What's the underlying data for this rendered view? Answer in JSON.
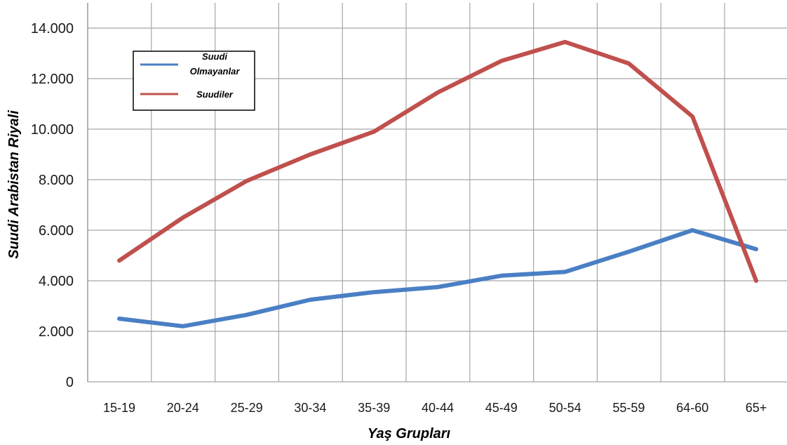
{
  "chart_data": {
    "type": "line",
    "categories": [
      "15-19",
      "20-24",
      "25-29",
      "30-34",
      "35-39",
      "40-44",
      "45-49",
      "50-54",
      "55-59",
      "64-60",
      "65+"
    ],
    "series": [
      {
        "name": "Suudi Olmayanlar",
        "color": "#4a7fc4",
        "values": [
          2500,
          2200,
          2650,
          3250,
          3550,
          3750,
          4200,
          4350,
          5150,
          6000,
          5250
        ]
      },
      {
        "name": "Suudiler",
        "color": "#c0504d",
        "values": [
          4800,
          6500,
          7950,
          9000,
          9900,
          11450,
          12700,
          13450,
          12600,
          10500,
          4000
        ]
      }
    ],
    "y_ticks": [
      {
        "value": 0,
        "label": "0"
      },
      {
        "value": 2000,
        "label": "2.000"
      },
      {
        "value": 4000,
        "label": "4.000"
      },
      {
        "value": 6000,
        "label": "6.000"
      },
      {
        "value": 8000,
        "label": "8.000"
      },
      {
        "value": 10000,
        "label": "10.000"
      },
      {
        "value": 12000,
        "label": "12.000"
      },
      {
        "value": 14000,
        "label": "14.000"
      }
    ],
    "ylim": [
      0,
      14000
    ],
    "xlabel": "Yaş Grupları",
    "ylabel": "Suudi Arabistan Riyali",
    "grid": true,
    "legend_position": "top-left",
    "legend_labels": [
      [
        "Suudi",
        "Olmayanlar"
      ],
      [
        "Suudiler"
      ]
    ]
  }
}
